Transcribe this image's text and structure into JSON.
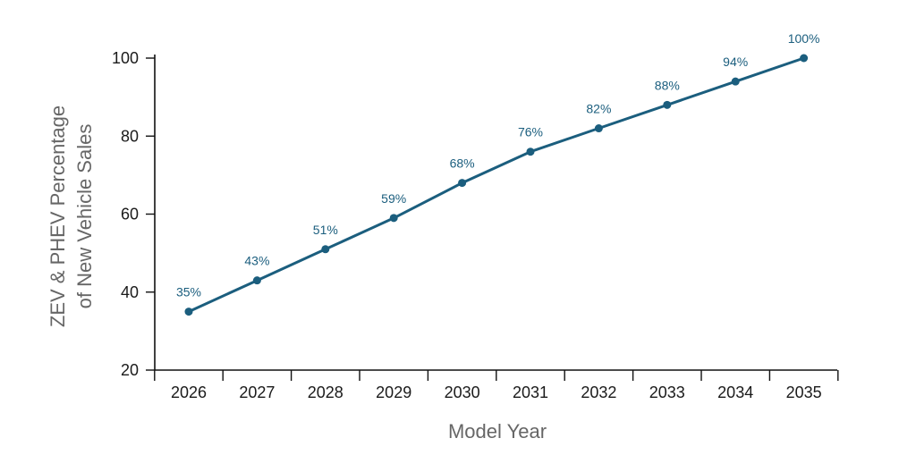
{
  "chart_data": {
    "type": "line",
    "title": "",
    "xlabel": "Model Year",
    "ylabel_lines": [
      "ZEV & PHEV Percentage",
      "of New Vehicle Sales"
    ],
    "categories": [
      "2026",
      "2027",
      "2028",
      "2029",
      "2030",
      "2031",
      "2032",
      "2033",
      "2034",
      "2035"
    ],
    "series": [
      {
        "values": [
          35,
          43,
          51,
          59,
          68,
          76,
          82,
          88,
          94,
          100
        ],
        "data_labels": [
          "35%",
          "43%",
          "51%",
          "59%",
          "68%",
          "76%",
          "82%",
          "88%",
          "94%",
          "100%"
        ]
      }
    ],
    "ylim": [
      20,
      100
    ],
    "yticks": [
      "20",
      "40",
      "60",
      "80",
      "100"
    ],
    "grid": false,
    "legend": "none",
    "colors": {
      "series": "#1b5e7e",
      "axis": "#111111",
      "axis_title": "#666666"
    }
  }
}
